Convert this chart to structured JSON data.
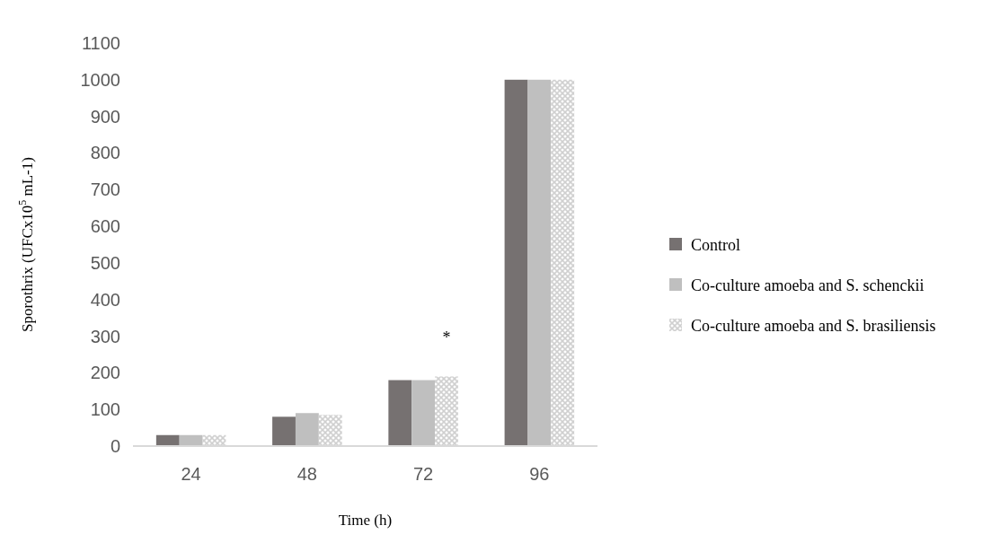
{
  "chart_data": {
    "type": "bar",
    "xlabel": "Time (h)",
    "ylabel": "Sporothrix (UFCx10$^{5}$ mL-1)",
    "categories": [
      "24",
      "48",
      "72",
      "96"
    ],
    "series": [
      {
        "name": "Control",
        "color": "#767171",
        "values": [
          30,
          80,
          180,
          1000
        ]
      },
      {
        "name": "Co-culture amoeba and  S. schenckii",
        "color": "#bfbfbf",
        "values": [
          30,
          90,
          180,
          1000
        ]
      },
      {
        "name": "Co-culture amoeba and S. brasiliensis",
        "color": "#d0d0d0",
        "values": [
          30,
          85,
          190,
          1000
        ]
      }
    ],
    "ylim": [
      0,
      1100
    ],
    "yticks": [
      0,
      100,
      200,
      300,
      400,
      500,
      600,
      700,
      800,
      900,
      1000,
      1100
    ],
    "legend": "right",
    "annotations": [
      "*"
    ]
  }
}
